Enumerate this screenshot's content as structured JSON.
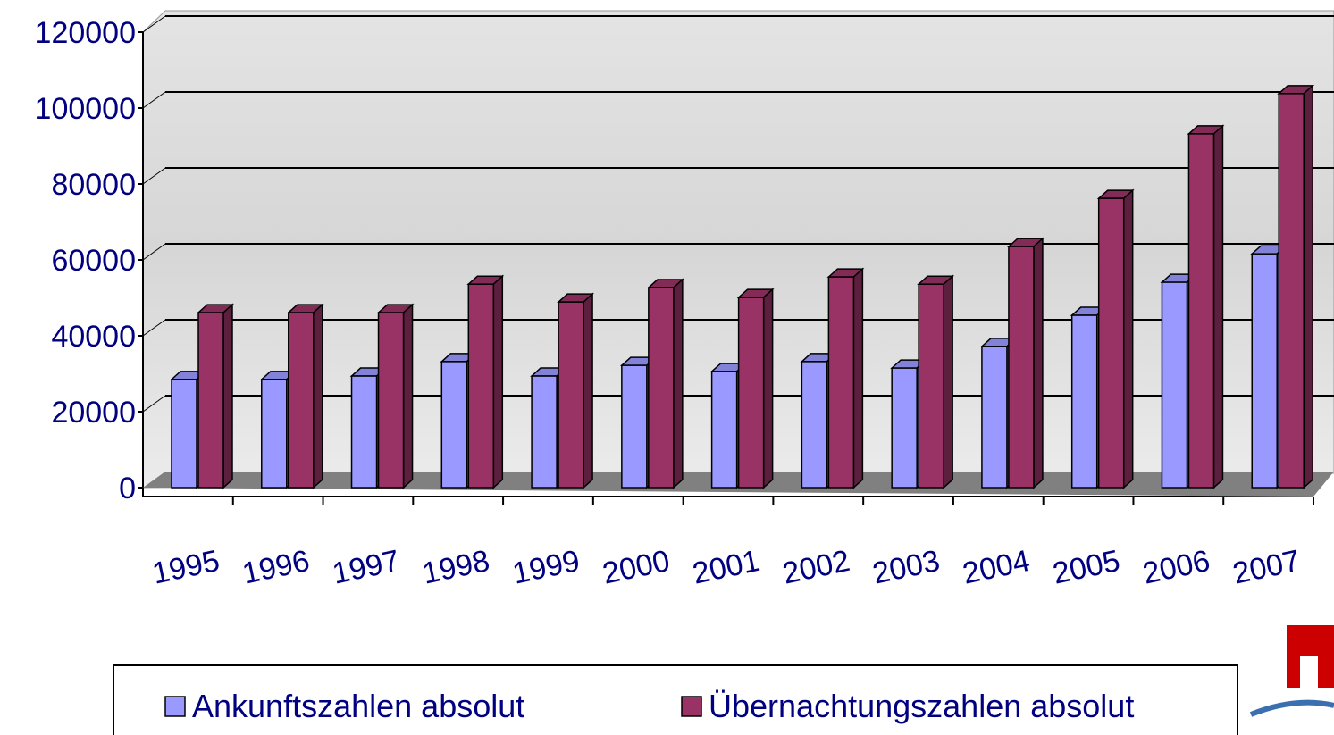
{
  "chart_data": {
    "type": "bar3d",
    "categories": [
      "1995",
      "1996",
      "1997",
      "1998",
      "1999",
      "2000",
      "2001",
      "2002",
      "2003",
      "2004",
      "2005",
      "2006",
      "2007"
    ],
    "series": [
      {
        "name": "Ankunftszahlen absolut",
        "color": "#9999ff",
        "values": [
          28500,
          28500,
          29400,
          33200,
          29400,
          32200,
          30600,
          33200,
          31500,
          37200,
          45400,
          54100,
          61600
        ]
      },
      {
        "name": "Übernachtungszahlen absolut",
        "color": "#993366",
        "values": [
          46100,
          46100,
          46100,
          53600,
          48900,
          52700,
          50100,
          55500,
          53600,
          63500,
          76200,
          93200,
          103800
        ]
      }
    ],
    "ylim": [
      0,
      120000
    ],
    "yticks": [
      0,
      20000,
      40000,
      60000,
      80000,
      100000,
      120000
    ],
    "grid": true
  }
}
